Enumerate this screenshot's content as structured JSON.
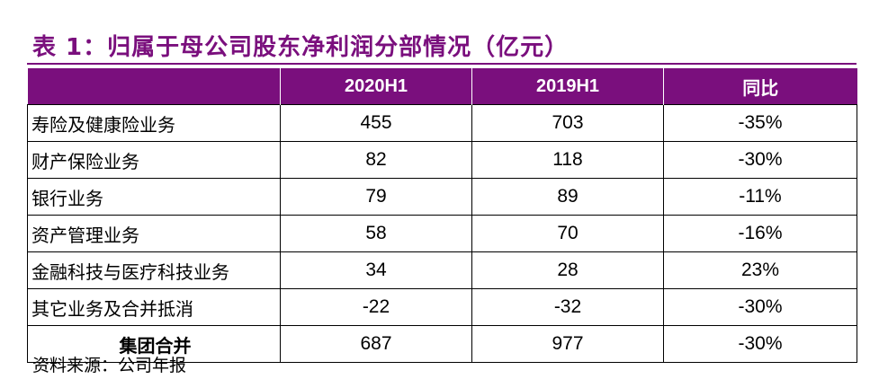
{
  "title": "表 1：归属于母公司股东净利润分部情况（亿元）",
  "colors": {
    "accent": "#7a0f7d",
    "header_text": "#ffffff"
  },
  "table": {
    "headers": [
      "",
      "2020H1",
      "2019H1",
      "同比"
    ],
    "rows": [
      [
        "寿险及健康险业务",
        "455",
        "703",
        "-35%"
      ],
      [
        "财产保险业务",
        "82",
        "118",
        "-30%"
      ],
      [
        "银行业务",
        "79",
        "89",
        "-11%"
      ],
      [
        "资产管理业务",
        "58",
        "70",
        "-16%"
      ],
      [
        "金融科技与医疗科技业务",
        "34",
        "28",
        "23%"
      ],
      [
        "其它业务及合并抵消",
        "-22",
        "-32",
        "-30%"
      ]
    ],
    "total": [
      "集团合并",
      "687",
      "977",
      "-30%"
    ]
  },
  "source": "资料来源：公司年报"
}
